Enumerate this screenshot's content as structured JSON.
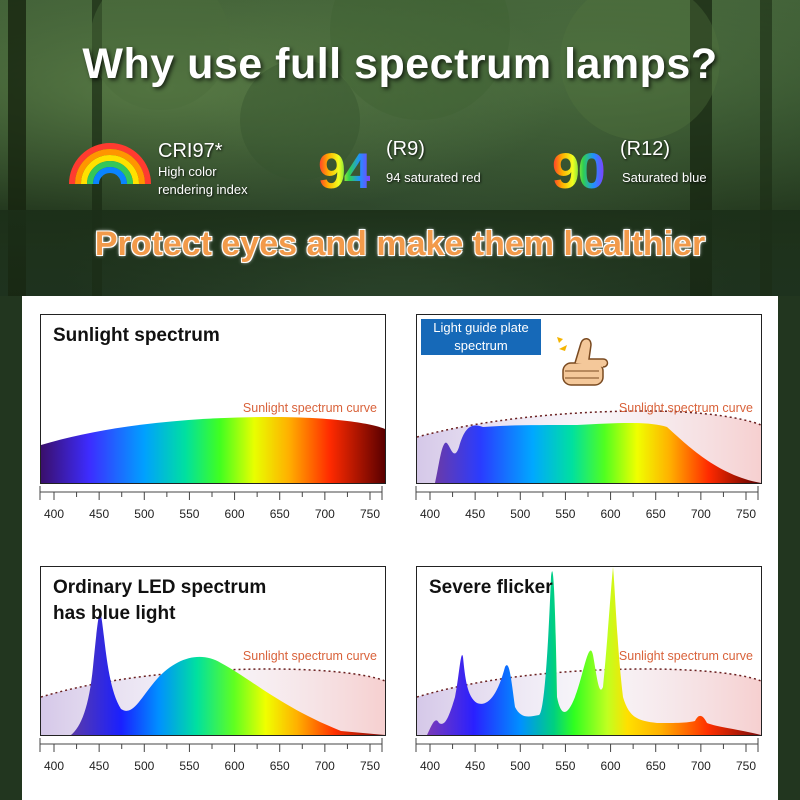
{
  "header": {
    "title": "Why use full spectrum lamps?",
    "cri": {
      "code": "CRI97*",
      "desc_line1": "High color",
      "desc_line2": "rendering index",
      "icon": "rainbow-icon"
    },
    "r9": {
      "value": "94",
      "code": "(R9)",
      "desc": "94 saturated red"
    },
    "r12": {
      "value": "90",
      "code": "(R12)",
      "desc": "Saturated blue"
    },
    "slogan": "Protect eyes and make them healthier"
  },
  "axis_ticks": [
    "400",
    "450",
    "500",
    "550",
    "600",
    "650",
    "700",
    "750"
  ],
  "panels": [
    {
      "title": "Sunlight spectrum",
      "curve_label": "Sunlight spectrum curve"
    },
    {
      "title_line1": "Light guide plate",
      "title_line2": "spectrum",
      "curve_label": "Sunlight spectrum curve",
      "icon": "thumbs-up-icon"
    },
    {
      "title_line1": "Ordinary LED spectrum",
      "title_line2": "has blue light",
      "curve_label": "Sunlight spectrum curve"
    },
    {
      "title": "Severe flicker",
      "curve_label": "Sunlight spectrum curve"
    }
  ]
}
